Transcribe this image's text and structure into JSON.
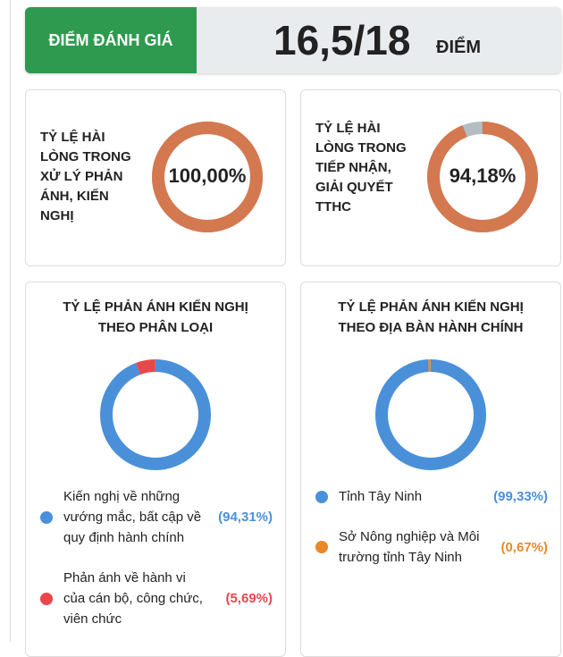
{
  "score": {
    "label": "ĐIỂM ĐÁNH GIÁ",
    "value": "16,5/18",
    "unit": "ĐIỂM"
  },
  "gauges": [
    {
      "title": "TỶ LỆ HÀI LÒNG TRONG XỬ LÝ PHẢN ÁNH, KIẾN NGHỊ",
      "value": 100,
      "label": "100,00%",
      "color": "#d4784f",
      "track": "#b3bec4"
    },
    {
      "title": "TỶ LỆ HÀI LÒNG TRONG TIẾP NHẬN, GIẢI QUYẾT TTHC",
      "value": 94.18,
      "label": "94,18%",
      "color": "#d4784f",
      "track": "#b3bec4"
    }
  ],
  "donuts": [
    {
      "title": "TỶ LỆ PHẢN ÁNH KIẾN NGHỊ THEO PHÂN LOẠI",
      "series": [
        {
          "name": "Kiến nghị về những vướng mắc, bất cập về quy định hành chính",
          "color": "#4a90d9",
          "value": 94.31,
          "label": "(94,31%)"
        },
        {
          "name": "Phản ánh về hành vi của cán bộ, công chức, viên chức",
          "color": "#e8474c",
          "value": 5.69,
          "label": "(5,69%)"
        }
      ]
    },
    {
      "title": "TỶ LỆ PHẢN ÁNH KIẾN NGHỊ THEO ĐỊA BÀN HÀNH CHÍNH",
      "series": [
        {
          "name": "Tỉnh Tây Ninh",
          "color": "#4a90d9",
          "value": 99.33,
          "label": "(99,33%)"
        },
        {
          "name": "Sở Nông nghiệp và Môi trường tỉnh Tây Ninh",
          "color": "#e8892b",
          "value": 0.67,
          "label": "(0,67%)"
        }
      ]
    }
  ]
}
